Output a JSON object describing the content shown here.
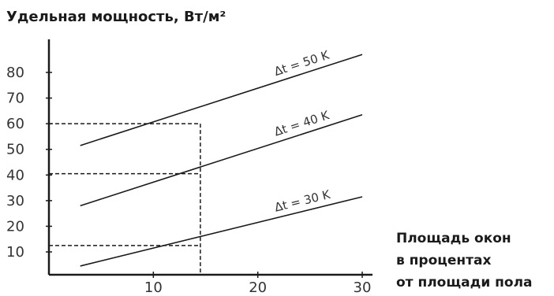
{
  "chart_data": {
    "type": "line",
    "title": "",
    "ylabel": "Удельная мощность, Вт/м²",
    "xlabel_lines": [
      "Площадь окон",
      "в процентах",
      "от площади пола"
    ],
    "xlim": [
      0,
      30
    ],
    "ylim": [
      0,
      90
    ],
    "x_ticks": [
      10,
      20,
      30
    ],
    "x_tick_labels": [
      "10",
      "20",
      "30"
    ],
    "y_ticks": [
      10,
      20,
      30,
      40,
      50,
      60,
      70,
      80
    ],
    "y_tick_labels": [
      "10",
      "20",
      "30",
      "40",
      "50",
      "60",
      "70",
      "80"
    ],
    "grid": false,
    "series": [
      {
        "name": "Δt = 50 K",
        "x": [
          3,
          30
        ],
        "y": [
          51.5,
          87
        ]
      },
      {
        "name": "Δt = 40 K",
        "x": [
          3,
          30
        ],
        "y": [
          28,
          63.5
        ]
      },
      {
        "name": "Δt = 30 K",
        "x": [
          3,
          30
        ],
        "y": [
          4.5,
          31.5
        ]
      }
    ],
    "reference_lines": [
      {
        "x": 14.5,
        "y": 60
      },
      {
        "x": 14.5,
        "y": 40.5
      },
      {
        "x": 14.5,
        "y": 12.5
      }
    ],
    "colors": {
      "line": "#1a1a1a",
      "axis": "#1a1a1a",
      "text": "#333333"
    }
  }
}
